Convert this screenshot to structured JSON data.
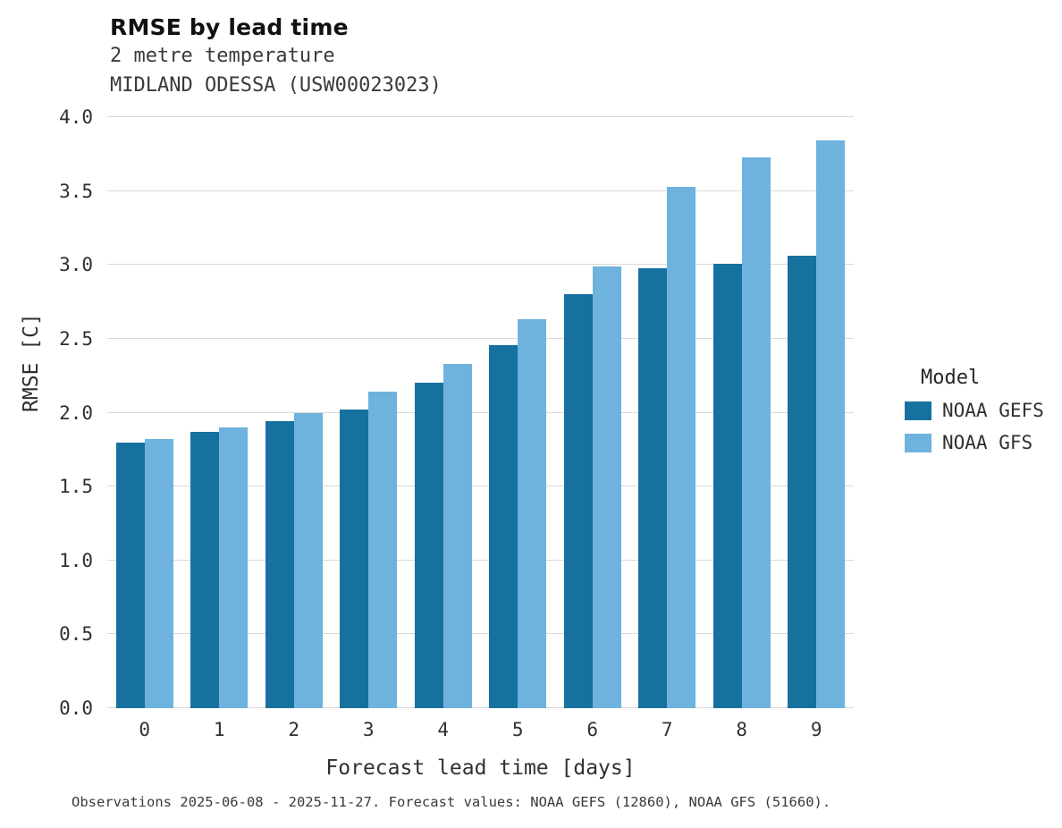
{
  "header": {
    "title": "RMSE by lead time",
    "subtitle_variable": "2 metre temperature",
    "subtitle_station": "MIDLAND ODESSA (USW00023023)"
  },
  "chart_data": {
    "type": "bar",
    "title": "RMSE by lead time",
    "xlabel": "Forecast lead time [days]",
    "ylabel": "RMSE [C]",
    "categories": [
      "0",
      "1",
      "2",
      "3",
      "4",
      "5",
      "6",
      "7",
      "8",
      "9"
    ],
    "series": [
      {
        "name": "NOAA GEFS",
        "color": "#17719f",
        "values": [
          1.8,
          1.87,
          1.94,
          2.02,
          2.2,
          2.46,
          2.8,
          2.98,
          3.01,
          3.06
        ]
      },
      {
        "name": "NOAA GFS",
        "color": "#6db3dd",
        "values": [
          1.82,
          1.9,
          2.0,
          2.14,
          2.33,
          2.63,
          2.99,
          3.53,
          3.73,
          3.84
        ]
      }
    ],
    "ylim": [
      0.0,
      4.0
    ],
    "y_ticks": [
      "0.0",
      "0.5",
      "1.0",
      "1.5",
      "2.0",
      "2.5",
      "3.0",
      "3.5",
      "4.0"
    ],
    "grid": true,
    "legend_title": "Model",
    "legend_position": "right"
  },
  "footer": {
    "caption": "Observations 2025-06-08 - 2025-11-27. Forecast values: NOAA GEFS (12860), NOAA GFS (51660)."
  }
}
